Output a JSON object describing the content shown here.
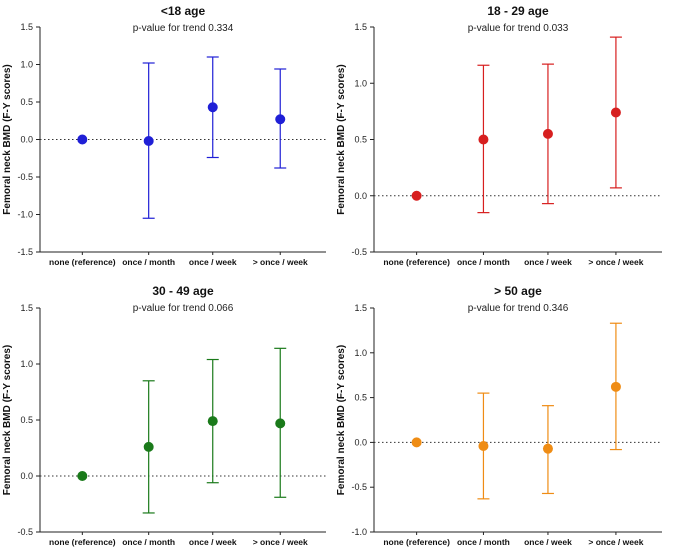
{
  "chart_data": [
    {
      "type": "scatter",
      "title": "<18 age",
      "subtitle": "p-value for trend 0.334",
      "ylabel": "Femoral neck BMD (F-Y scores)",
      "categories": [
        "none (reference)",
        "once / month",
        "once / week",
        "> once / week"
      ],
      "values": [
        0.0,
        -0.02,
        0.43,
        0.27
      ],
      "ci_lower": [
        0.0,
        -1.05,
        -0.24,
        -0.38
      ],
      "ci_upper": [
        0.0,
        1.02,
        1.1,
        0.94
      ],
      "ylim": [
        -1.5,
        1.5
      ],
      "yticks": [
        1.5,
        1.0,
        0.5,
        0.0,
        -0.5,
        -1.0,
        -1.5
      ],
      "ytick_labels": [
        "1.5",
        "1.0",
        "0.5",
        "0.0",
        "-0.5",
        "-1.0",
        "-1.5"
      ],
      "reference_line": 0.0,
      "color": "#1f1fd6"
    },
    {
      "type": "scatter",
      "title": "18 - 29 age",
      "subtitle": "p-value for trend 0.033",
      "ylabel": "Femoral neck BMD (F-Y scores)",
      "categories": [
        "none (reference)",
        "once / month",
        "once / week",
        "> once / week"
      ],
      "values": [
        0.0,
        0.5,
        0.55,
        0.74
      ],
      "ci_lower": [
        0.0,
        -0.15,
        -0.07,
        0.07
      ],
      "ci_upper": [
        0.0,
        1.16,
        1.17,
        1.41
      ],
      "ylim": [
        -0.5,
        1.5
      ],
      "yticks": [
        1.5,
        1.0,
        0.5,
        0.0,
        -0.5
      ],
      "ytick_labels": [
        "1.5",
        "1.0",
        "0.5",
        "0.0",
        "-0.5"
      ],
      "reference_line": 0.0,
      "color": "#d71f1f"
    },
    {
      "type": "scatter",
      "title": "30 - 49 age",
      "subtitle": "p-value for trend 0.066",
      "ylabel": "Femoral neck BMD (F-Y scores)",
      "categories": [
        "none (reference)",
        "once / month",
        "once / week",
        "> once / week"
      ],
      "values": [
        0.0,
        0.26,
        0.49,
        0.47
      ],
      "ci_lower": [
        0.0,
        -0.33,
        -0.06,
        -0.19
      ],
      "ci_upper": [
        0.0,
        0.85,
        1.04,
        1.14
      ],
      "ylim": [
        -0.5,
        1.5
      ],
      "yticks": [
        1.5,
        1.0,
        0.5,
        0.0,
        -0.5
      ],
      "ytick_labels": [
        "1.5",
        "1.0",
        "0.5",
        "0.0",
        "-0.5"
      ],
      "reference_line": 0.0,
      "color": "#1a7a1a"
    },
    {
      "type": "scatter",
      "title": "> 50 age",
      "subtitle": "p-value for trend 0.346",
      "ylabel": "Femoral neck BMD (F-Y scores)",
      "categories": [
        "none (reference)",
        "once / month",
        "once / week",
        "> once / week"
      ],
      "values": [
        0.0,
        -0.04,
        -0.07,
        0.62
      ],
      "ci_lower": [
        0.0,
        -0.63,
        -0.57,
        -0.08
      ],
      "ci_upper": [
        0.0,
        0.55,
        0.41,
        1.33
      ],
      "ylim": [
        -1.0,
        1.5
      ],
      "yticks": [
        1.5,
        1.0,
        0.5,
        0.0,
        -0.5,
        -1.0
      ],
      "ytick_labels": [
        "1.5",
        "1.0",
        "0.5",
        "0.0",
        "-0.5",
        "-1.0"
      ],
      "reference_line": 0.0,
      "color": "#ef8c14"
    }
  ]
}
